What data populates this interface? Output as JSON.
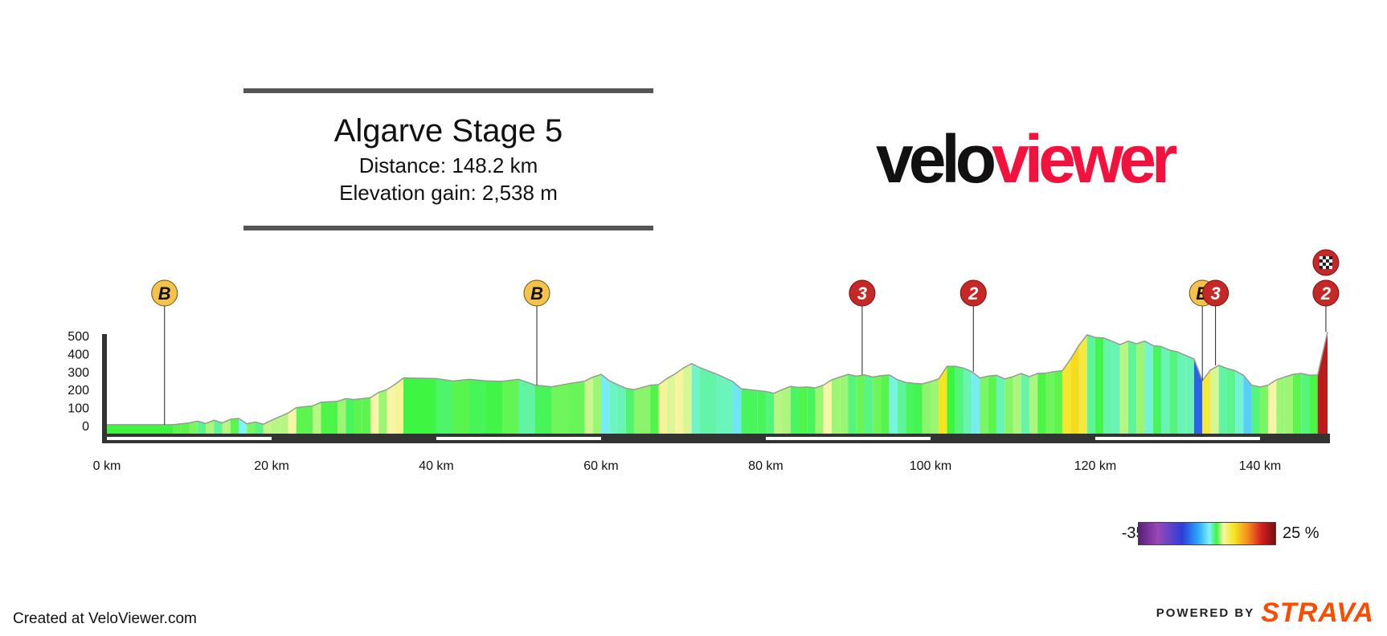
{
  "header": {
    "title": "Algarve Stage 5",
    "distance": "Distance: 148.2 km",
    "elevation_gain": "Elevation gain: 2,538 m"
  },
  "logo": {
    "part1": "velo",
    "part2": "viewer"
  },
  "legend": {
    "min_label": "-35 %",
    "max_label": "25 %"
  },
  "footer": {
    "credit": "Created at VeloViewer.com",
    "powered_by": "POWERED BY",
    "strava": "STRAVA"
  },
  "colors": {
    "brand_red": "#f3123e",
    "strava_orange": "#fc4c02",
    "marker_bonus": "#f5c34c",
    "marker_climb": "#c62828"
  },
  "chart_data": {
    "type": "area",
    "xlabel": "",
    "ylabel": "",
    "xlim": [
      0,
      148.2
    ],
    "ylim": [
      0,
      500
    ],
    "x_ticks": [
      "0 km",
      "20 km",
      "40 km",
      "60 km",
      "80 km",
      "100 km",
      "120 km",
      "140 km"
    ],
    "y_ticks": [
      "500",
      "400",
      "300",
      "200",
      "100",
      "0"
    ],
    "profile": [
      [
        0,
        5
      ],
      [
        8,
        5
      ],
      [
        9,
        10
      ],
      [
        10,
        15
      ],
      [
        11,
        25
      ],
      [
        12,
        12
      ],
      [
        13,
        30
      ],
      [
        14,
        15
      ],
      [
        15,
        35
      ],
      [
        16,
        40
      ],
      [
        17,
        10
      ],
      [
        18,
        20
      ],
      [
        19,
        8
      ],
      [
        20,
        30
      ],
      [
        21,
        50
      ],
      [
        22,
        70
      ],
      [
        23,
        100
      ],
      [
        25,
        110
      ],
      [
        26,
        130
      ],
      [
        28,
        135
      ],
      [
        29,
        150
      ],
      [
        30,
        145
      ],
      [
        31,
        150
      ],
      [
        32,
        155
      ],
      [
        33,
        185
      ],
      [
        34,
        200
      ],
      [
        35,
        230
      ],
      [
        36,
        265
      ],
      [
        40,
        262
      ],
      [
        42,
        248
      ],
      [
        44,
        257
      ],
      [
        46,
        249
      ],
      [
        48,
        246
      ],
      [
        50,
        258
      ],
      [
        52,
        225
      ],
      [
        54,
        216
      ],
      [
        56,
        233
      ],
      [
        58,
        247
      ],
      [
        59,
        270
      ],
      [
        60,
        285
      ],
      [
        61,
        250
      ],
      [
        62,
        228
      ],
      [
        63,
        208
      ],
      [
        64,
        200
      ],
      [
        66,
        225
      ],
      [
        67,
        228
      ],
      [
        68,
        262
      ],
      [
        69,
        288
      ],
      [
        70,
        320
      ],
      [
        71,
        345
      ],
      [
        72,
        322
      ],
      [
        74,
        287
      ],
      [
        76,
        245
      ],
      [
        77,
        205
      ],
      [
        78,
        200
      ],
      [
        79,
        195
      ],
      [
        80,
        190
      ],
      [
        81,
        180
      ],
      [
        82,
        200
      ],
      [
        83,
        218
      ],
      [
        84,
        212
      ],
      [
        85,
        215
      ],
      [
        86,
        210
      ],
      [
        87,
        225
      ],
      [
        88,
        255
      ],
      [
        89,
        270
      ],
      [
        90,
        285
      ],
      [
        91,
        275
      ],
      [
        92,
        282
      ],
      [
        93,
        270
      ],
      [
        94,
        278
      ],
      [
        95,
        282
      ],
      [
        96,
        255
      ],
      [
        97,
        240
      ],
      [
        98,
        235
      ],
      [
        99,
        232
      ],
      [
        100,
        245
      ],
      [
        101,
        260
      ],
      [
        102,
        330
      ],
      [
        103,
        330
      ],
      [
        104,
        320
      ],
      [
        105,
        300
      ],
      [
        106,
        265
      ],
      [
        107,
        275
      ],
      [
        108,
        280
      ],
      [
        109,
        260
      ],
      [
        110,
        272
      ],
      [
        111,
        290
      ],
      [
        112,
        272
      ],
      [
        113,
        290
      ],
      [
        114,
        292
      ],
      [
        115,
        300
      ],
      [
        116,
        305
      ],
      [
        117,
        370
      ],
      [
        118,
        445
      ],
      [
        119,
        505
      ],
      [
        120,
        490
      ],
      [
        121,
        488
      ],
      [
        122,
        470
      ],
      [
        123,
        450
      ],
      [
        124,
        470
      ],
      [
        125,
        455
      ],
      [
        126,
        470
      ],
      [
        127,
        445
      ],
      [
        128,
        440
      ],
      [
        129,
        420
      ],
      [
        130,
        410
      ],
      [
        131,
        390
      ],
      [
        132,
        370
      ],
      [
        133,
        250
      ],
      [
        134,
        310
      ],
      [
        135,
        335
      ],
      [
        136,
        318
      ],
      [
        137,
        305
      ],
      [
        138,
        280
      ],
      [
        139,
        225
      ],
      [
        140,
        215
      ],
      [
        141,
        225
      ],
      [
        142,
        255
      ],
      [
        143,
        270
      ],
      [
        144,
        285
      ],
      [
        145,
        290
      ],
      [
        146,
        280
      ],
      [
        147,
        282
      ],
      [
        148.2,
        520
      ]
    ],
    "markers": [
      {
        "km": 7.0,
        "label": "B",
        "kind": "bonus"
      },
      {
        "km": 52.2,
        "label": "B",
        "kind": "bonus"
      },
      {
        "km": 91.7,
        "label": "3",
        "kind": "climb"
      },
      {
        "km": 105.2,
        "label": "2",
        "kind": "climb"
      },
      {
        "km": 133.0,
        "label": "B",
        "kind": "bonus"
      },
      {
        "km": 134.6,
        "label": "3",
        "kind": "climb"
      },
      {
        "km": 148.0,
        "label": "2",
        "kind": "climb"
      },
      {
        "km": 148.0,
        "label": "",
        "kind": "finish"
      }
    ]
  }
}
